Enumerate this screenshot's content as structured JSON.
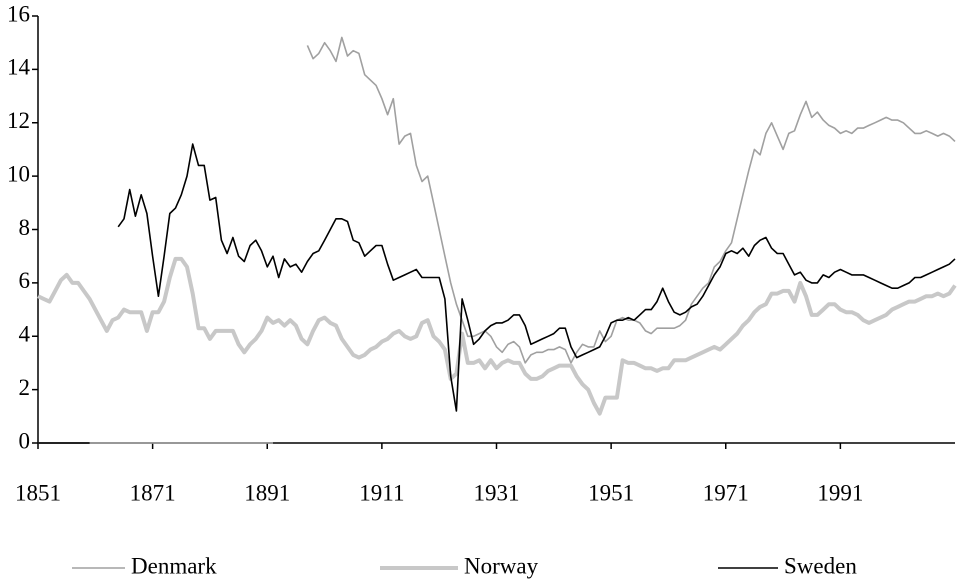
{
  "chart_data": {
    "type": "line",
    "x": [
      1851,
      1852,
      1853,
      1854,
      1855,
      1856,
      1857,
      1858,
      1859,
      1860,
      1861,
      1862,
      1863,
      1864,
      1865,
      1866,
      1867,
      1868,
      1869,
      1870,
      1871,
      1872,
      1873,
      1874,
      1875,
      1876,
      1877,
      1878,
      1879,
      1880,
      1881,
      1882,
      1883,
      1884,
      1885,
      1886,
      1887,
      1888,
      1889,
      1890,
      1891,
      1892,
      1893,
      1894,
      1895,
      1896,
      1897,
      1898,
      1899,
      1900,
      1901,
      1902,
      1903,
      1904,
      1905,
      1906,
      1907,
      1908,
      1909,
      1910,
      1911,
      1912,
      1913,
      1914,
      1915,
      1916,
      1917,
      1918,
      1919,
      1920,
      1921,
      1922,
      1923,
      1924,
      1925,
      1926,
      1927,
      1928,
      1929,
      1930,
      1931,
      1932,
      1933,
      1934,
      1935,
      1936,
      1937,
      1938,
      1939,
      1940,
      1941,
      1942,
      1943,
      1944,
      1945,
      1946,
      1947,
      1948,
      1949,
      1950,
      1951,
      1952,
      1953,
      1954,
      1955,
      1956,
      1957,
      1958,
      1959,
      1960,
      1961,
      1962,
      1963,
      1964,
      1965,
      1966,
      1967,
      1968,
      1969,
      1970,
      1971,
      1972,
      1973,
      1974,
      1975,
      1976,
      1977,
      1978,
      1979,
      1980,
      1981,
      1982,
      1983,
      1984,
      1985,
      1986,
      1987,
      1988,
      1989,
      1990,
      1991,
      1992,
      1993,
      1994,
      1995,
      1996,
      1997,
      1998,
      1999,
      2000,
      2001,
      2002,
      2003,
      2004,
      2005,
      2006,
      2007,
      2008,
      2009,
      2010,
      2011
    ],
    "series": [
      {
        "name": "Denmark",
        "color": "#a0a0a0",
        "width": 1.6,
        "values": [
          0,
          0,
          0,
          0,
          0,
          0,
          0,
          0,
          0,
          0,
          0,
          0,
          0,
          0,
          0,
          0,
          0,
          0,
          0,
          0,
          0,
          0,
          0,
          0,
          0,
          0,
          0,
          0,
          0,
          0,
          0,
          0,
          0,
          0,
          0,
          0,
          0,
          0,
          0,
          0,
          0,
          0,
          null,
          null,
          null,
          null,
          null,
          14.9,
          14.4,
          14.6,
          15.0,
          14.7,
          14.3,
          15.2,
          14.5,
          14.7,
          14.6,
          13.8,
          13.6,
          13.4,
          12.9,
          12.3,
          12.9,
          11.2,
          11.5,
          11.6,
          10.4,
          9.8,
          10.0,
          9.0,
          8.0,
          7.0,
          6.0,
          5.2,
          4.6,
          4.0,
          4.0,
          4.1,
          4.2,
          4.0,
          3.6,
          3.4,
          3.7,
          3.8,
          3.6,
          3.0,
          3.3,
          3.4,
          3.4,
          3.5,
          3.5,
          3.6,
          3.5,
          3.0,
          3.4,
          3.7,
          3.6,
          3.6,
          4.2,
          3.8,
          4.0,
          4.6,
          4.7,
          4.6,
          4.6,
          4.5,
          4.2,
          4.1,
          4.3,
          4.3,
          4.3,
          4.3,
          4.4,
          4.6,
          5.2,
          5.5,
          5.8,
          6.0,
          6.6,
          6.8,
          7.2,
          7.5,
          8.4,
          9.3,
          10.2,
          11.0,
          10.8,
          11.6,
          12.0,
          11.5,
          11.0,
          11.6,
          11.7,
          12.3,
          12.8,
          12.2,
          12.4,
          12.1,
          11.9,
          11.8,
          11.6,
          11.7,
          11.6,
          11.8,
          11.8,
          11.9,
          12.0,
          12.1,
          12.2,
          12.1,
          12.1,
          12.0,
          11.8,
          11.6,
          11.6,
          11.7,
          11.6,
          11.5,
          11.6,
          11.5,
          11.3
        ]
      },
      {
        "name": "Norway",
        "color": "#c8c8c8",
        "width": 4,
        "values": [
          5.5,
          5.4,
          5.3,
          5.7,
          6.1,
          6.3,
          6.0,
          6.0,
          5.7,
          5.4,
          5.0,
          4.6,
          4.2,
          4.6,
          4.7,
          5.0,
          4.9,
          4.9,
          4.9,
          4.2,
          4.9,
          4.9,
          5.3,
          6.2,
          6.9,
          6.9,
          6.6,
          5.6,
          4.3,
          4.3,
          3.9,
          4.2,
          4.2,
          4.2,
          4.2,
          3.7,
          3.4,
          3.7,
          3.9,
          4.2,
          4.7,
          4.5,
          4.6,
          4.4,
          4.6,
          4.4,
          3.9,
          3.7,
          4.2,
          4.6,
          4.7,
          4.5,
          4.4,
          3.9,
          3.6,
          3.3,
          3.2,
          3.3,
          3.5,
          3.6,
          3.8,
          3.9,
          4.1,
          4.2,
          4.0,
          3.9,
          4.0,
          4.5,
          4.6,
          4.0,
          3.8,
          3.5,
          2.4,
          2.6,
          4.1,
          3.0,
          3.0,
          3.1,
          2.8,
          3.1,
          2.8,
          3.0,
          3.1,
          3.0,
          3.0,
          2.6,
          2.4,
          2.4,
          2.5,
          2.7,
          2.8,
          2.9,
          2.9,
          2.9,
          2.5,
          2.2,
          2.0,
          1.5,
          1.1,
          1.7,
          1.7,
          1.7,
          3.1,
          3.0,
          3.0,
          2.9,
          2.8,
          2.8,
          2.7,
          2.8,
          2.8,
          3.1,
          3.1,
          3.1,
          3.2,
          3.3,
          3.4,
          3.5,
          3.6,
          3.5,
          3.7,
          3.9,
          4.1,
          4.4,
          4.6,
          4.9,
          5.1,
          5.2,
          5.6,
          5.6,
          5.7,
          5.7,
          5.3,
          6.0,
          5.5,
          4.8,
          4.8,
          5.0,
          5.2,
          5.2,
          5.0,
          4.9,
          4.9,
          4.8,
          4.6,
          4.5,
          4.6,
          4.7,
          4.8,
          5.0,
          5.1,
          5.2,
          5.3,
          5.3,
          5.4,
          5.5,
          5.5,
          5.6,
          5.5,
          5.6,
          5.9
        ]
      },
      {
        "name": "Sweden",
        "color": "#000000",
        "width": 1.6,
        "values": [
          0,
          0,
          0,
          0,
          0,
          0,
          0,
          0,
          0,
          0,
          null,
          null,
          null,
          null,
          8.1,
          8.4,
          9.5,
          8.5,
          9.3,
          8.6,
          7.0,
          5.5,
          7.0,
          8.6,
          8.8,
          9.3,
          10.0,
          11.2,
          10.4,
          10.4,
          9.1,
          9.2,
          7.6,
          7.1,
          7.7,
          7.0,
          6.8,
          7.4,
          7.6,
          7.2,
          6.6,
          7.0,
          6.2,
          6.9,
          6.6,
          6.7,
          6.4,
          6.8,
          7.1,
          7.2,
          7.6,
          8.0,
          8.4,
          8.4,
          8.3,
          7.6,
          7.5,
          7.0,
          7.2,
          7.4,
          7.4,
          6.7,
          6.1,
          6.2,
          6.3,
          6.4,
          6.5,
          6.2,
          6.2,
          6.2,
          6.2,
          5.4,
          2.5,
          1.2,
          5.4,
          4.6,
          3.7,
          3.9,
          4.2,
          4.4,
          4.5,
          4.5,
          4.6,
          4.8,
          4.8,
          4.4,
          3.7,
          3.8,
          3.9,
          4.0,
          4.1,
          4.3,
          4.3,
          3.6,
          3.2,
          3.3,
          3.4,
          3.5,
          3.6,
          4.0,
          4.5,
          4.6,
          4.6,
          4.7,
          4.6,
          4.8,
          5.0,
          5.0,
          5.3,
          5.8,
          5.3,
          4.9,
          4.8,
          4.9,
          5.1,
          5.2,
          5.5,
          5.9,
          6.3,
          6.6,
          7.1,
          7.2,
          7.1,
          7.3,
          7.0,
          7.4,
          7.6,
          7.7,
          7.3,
          7.1,
          7.1,
          6.7,
          6.3,
          6.4,
          6.1,
          6.0,
          6.0,
          6.3,
          6.2,
          6.4,
          6.5,
          6.4,
          6.3,
          6.3,
          6.3,
          6.2,
          6.1,
          6.0,
          5.9,
          5.8,
          5.8,
          5.9,
          6.0,
          6.2,
          6.2,
          6.3,
          6.4,
          6.5,
          6.6,
          6.7,
          6.9
        ]
      }
    ],
    "xlim": [
      1851,
      2011
    ],
    "xticks": [
      1851,
      1871,
      1891,
      1911,
      1931,
      1951,
      1971,
      1991
    ],
    "ylim": [
      0,
      16
    ],
    "yticks": [
      0,
      2,
      4,
      6,
      8,
      10,
      12,
      14,
      16
    ],
    "grid": false,
    "legend": "bottom"
  }
}
